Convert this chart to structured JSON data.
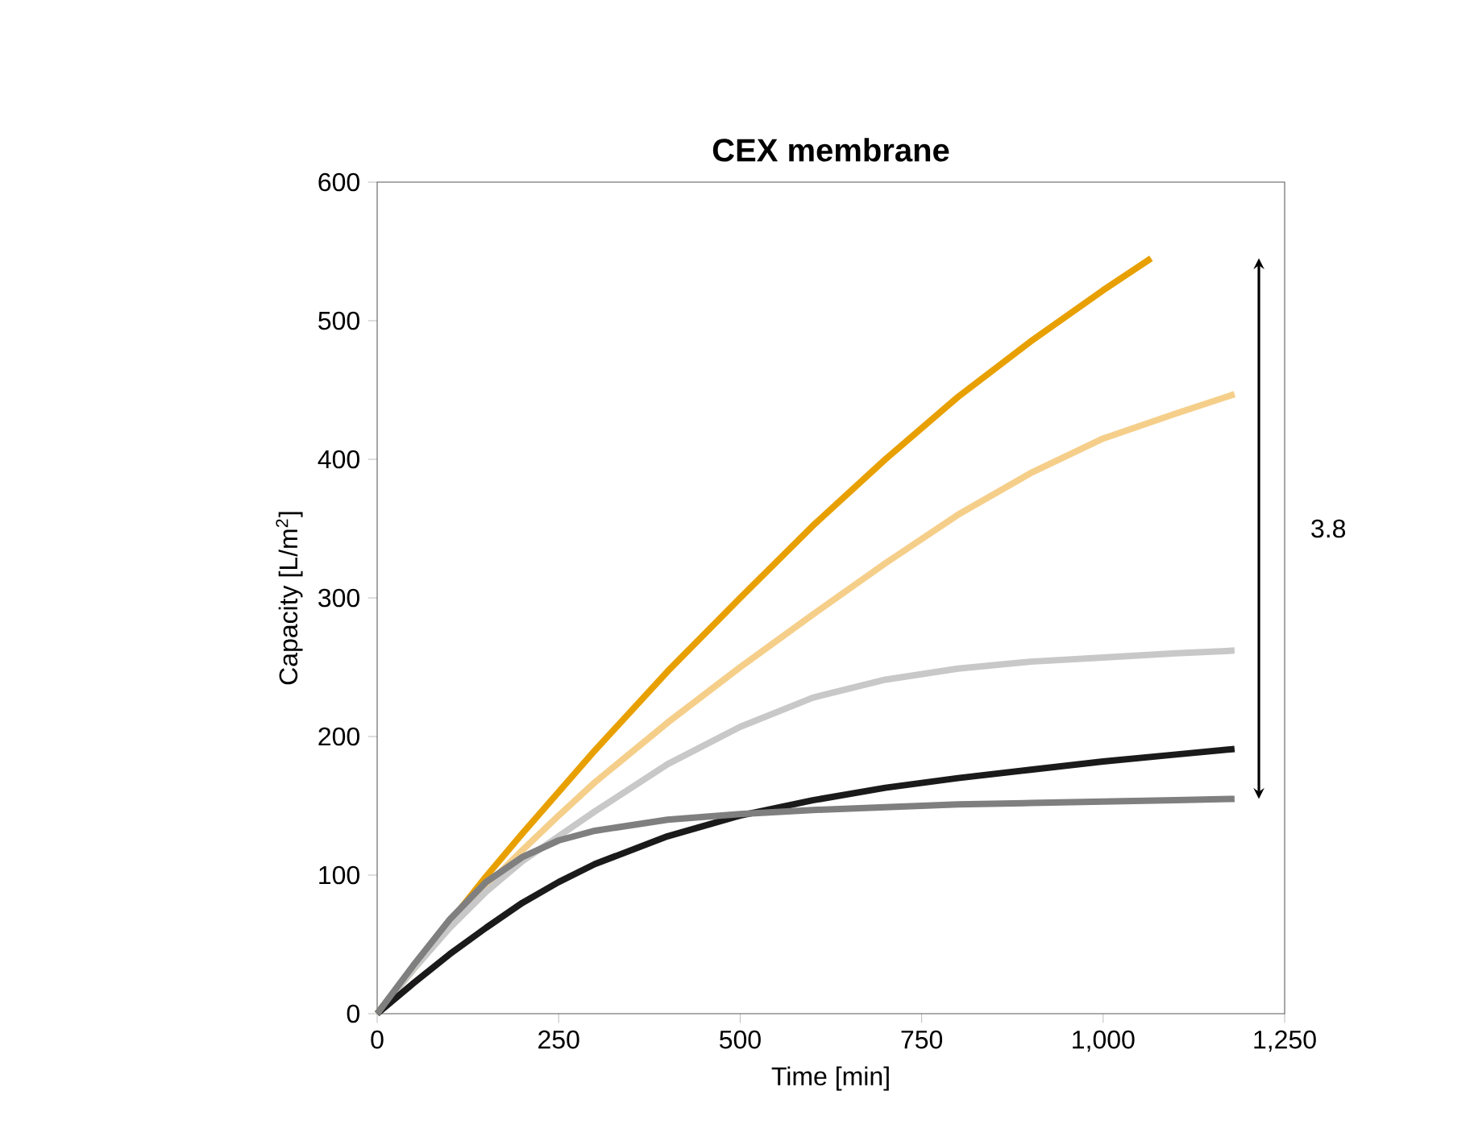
{
  "chart_data": {
    "type": "line",
    "title": "CEX membrane",
    "xlabel": "Time [min]",
    "ylabel": "Capacity [L/m$^{2}$]",
    "xlim": [
      0,
      1250
    ],
    "ylim": [
      0,
      600
    ],
    "xticks": [
      0,
      250,
      500,
      750,
      {
        "value": 1000,
        "label": "1,000"
      },
      {
        "value": 1250,
        "label": "1,250"
      }
    ],
    "yticks": [
      0,
      100,
      200,
      300,
      400,
      500,
      600
    ],
    "grid": false,
    "marker": "none",
    "line_style": "solid",
    "annotations": [
      "3.8"
    ],
    "series": [
      {
        "color": "#e8a000",
        "x": [
          0,
          50,
          100,
          150,
          200,
          250,
          300,
          400,
          500,
          600,
          700,
          800,
          900,
          1000,
          1066
        ],
        "values": [
          0,
          33,
          66,
          99,
          130,
          160,
          190,
          247,
          300,
          352,
          400,
          445,
          485,
          522,
          545
        ]
      },
      {
        "color": "#f5cf8a",
        "x": [
          0,
          50,
          100,
          150,
          200,
          250,
          300,
          400,
          500,
          600,
          700,
          800,
          900,
          1000,
          1100,
          1181
        ],
        "values": [
          0,
          32,
          63,
          92,
          118,
          143,
          167,
          210,
          250,
          288,
          325,
          360,
          390,
          415,
          433,
          447
        ]
      },
      {
        "color": "#c8c8c8",
        "x": [
          0,
          50,
          100,
          150,
          200,
          250,
          300,
          400,
          500,
          600,
          700,
          800,
          900,
          1000,
          1100,
          1181
        ],
        "values": [
          0,
          32,
          62,
          88,
          110,
          128,
          146,
          180,
          207,
          228,
          241,
          249,
          254,
          257,
          260,
          262
        ]
      },
      {
        "color": "#1a1a1a",
        "x": [
          0,
          50,
          100,
          150,
          200,
          250,
          300,
          400,
          500,
          600,
          700,
          800,
          900,
          1000,
          1100,
          1181
        ],
        "values": [
          0,
          22,
          43,
          62,
          80,
          95,
          108,
          128,
          143,
          154,
          163,
          170,
          176,
          182,
          187,
          191
        ]
      },
      {
        "color": "#7f7f80",
        "x": [
          0,
          50,
          100,
          150,
          200,
          250,
          300,
          400,
          500,
          600,
          700,
          800,
          900,
          1000,
          1100,
          1181
        ],
        "values": [
          0,
          35,
          68,
          95,
          113,
          125,
          132,
          140,
          144,
          147,
          149,
          151,
          152,
          153,
          154,
          155
        ]
      }
    ]
  }
}
